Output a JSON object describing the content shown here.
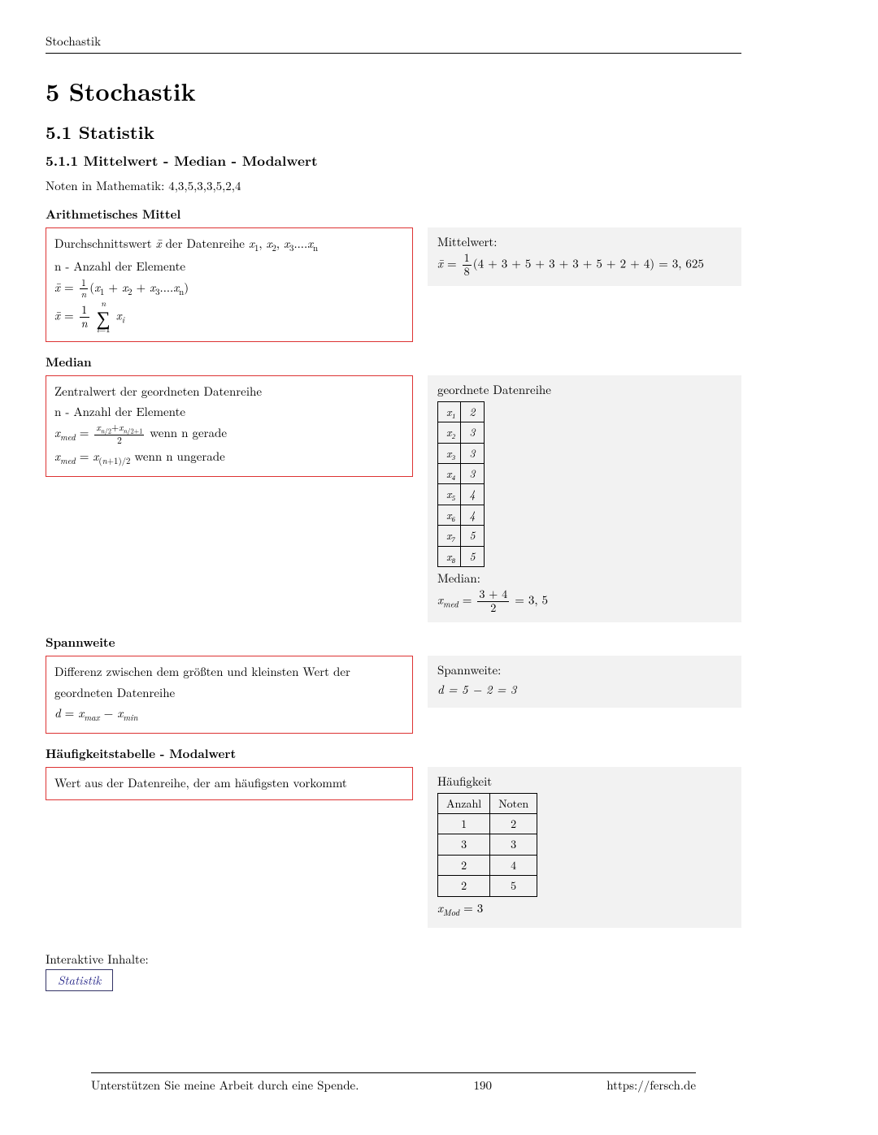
{
  "running_head": "Stochastik",
  "h1": "5   Stochastik",
  "h2": "5.1   Statistik",
  "h3": "5.1.1   Mittelwert - Median - Modalwert",
  "intro": "Noten in Mathematik: 4,3,5,3,3,5,2,4",
  "sec_mean": {
    "title": "Arithmetisches Mittel",
    "def1_a": "Durchschnittswert ",
    "def1_b": " der Datenreihe ",
    "def2": "n - Anzahl der Elemente",
    "ex_label": "Mittelwert:",
    "ex_rhs": "(4 + 3 + 5 + 3 + 3 + 5 + 2 + 4) = 3, 625"
  },
  "sec_median": {
    "title": "Median",
    "def1": "Zentralwert der geordneten Datenreihe",
    "def2": "n - Anzahl der Elemente",
    "def3_tail": " wenn n gerade",
    "def4_tail": " wenn n ungerade",
    "ex_label": "geordnete Datenreihe",
    "table_rows": [
      [
        "x₁",
        "2"
      ],
      [
        "x₂",
        "3"
      ],
      [
        "x₃",
        "3"
      ],
      [
        "x₄",
        "3"
      ],
      [
        "x₅",
        "4"
      ],
      [
        "x₆",
        "4"
      ],
      [
        "x₇",
        "5"
      ],
      [
        "x₈",
        "5"
      ]
    ],
    "ex_median_label": "Median:",
    "ex_median_rhs": " = 3, 5"
  },
  "sec_spann": {
    "title": "Spannweite",
    "def1": "Differenz zwischen dem größten und kleinsten Wert der geordneten Datenreihe",
    "ex_label": "Spannweite:",
    "ex_expr": "d = 5 − 2 = 3"
  },
  "sec_modal": {
    "title": "Häufigkeitstabelle - Modalwert",
    "def1": "Wert aus der Datenreihe, der am häufigsten vorkommt",
    "ex_label": "Häufigkeit",
    "table_head": [
      "Anzahl",
      "Noten"
    ],
    "table_rows": [
      [
        "1",
        "2"
      ],
      [
        "3",
        "3"
      ],
      [
        "2",
        "4"
      ],
      [
        "2",
        "5"
      ]
    ],
    "ex_mod_eq": " = 3"
  },
  "interactive_label": "Interaktive Inhalte:",
  "interactive_link": "Statistik",
  "footer_left": "Unterstützen Sie meine Arbeit durch eine Spende.",
  "footer_center": "190",
  "footer_right": "https://fersch.de",
  "colors": {
    "border_def": "#d33",
    "bg_example": "#f2f2f2",
    "link": "#2a2a8a"
  }
}
